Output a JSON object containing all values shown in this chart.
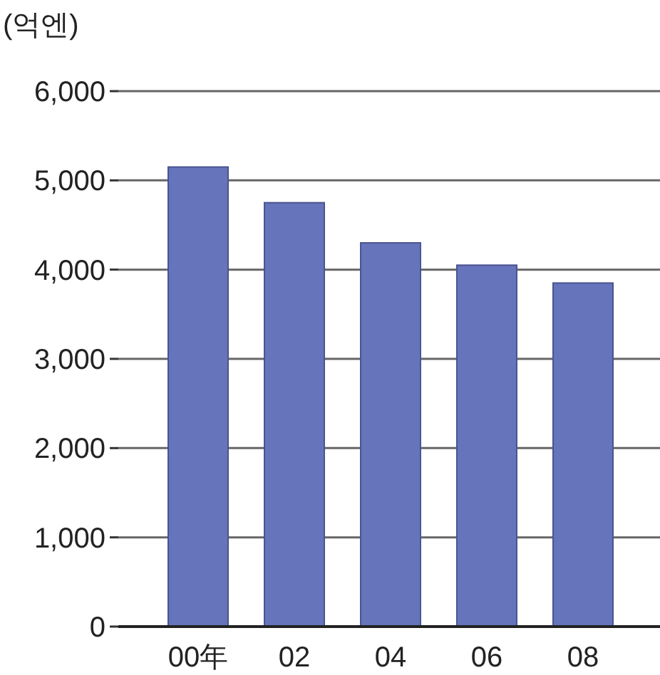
{
  "chart_data": {
    "type": "bar",
    "ylabel": "(억엔)",
    "categories": [
      "00年",
      "02",
      "04",
      "06",
      "08"
    ],
    "values": [
      5150,
      4750,
      4300,
      4050,
      3850
    ],
    "color": "#6674bb",
    "ylim": [
      0,
      6000
    ],
    "yticks": [
      {
        "value": 0,
        "label": "0"
      },
      {
        "value": 1000,
        "label": "1,000"
      },
      {
        "value": 2000,
        "label": "2,000"
      },
      {
        "value": 3000,
        "label": "3,000"
      },
      {
        "value": 4000,
        "label": "4,000"
      },
      {
        "value": 5000,
        "label": "5,000"
      },
      {
        "value": 6000,
        "label": "6,000"
      }
    ],
    "grid": "y"
  }
}
